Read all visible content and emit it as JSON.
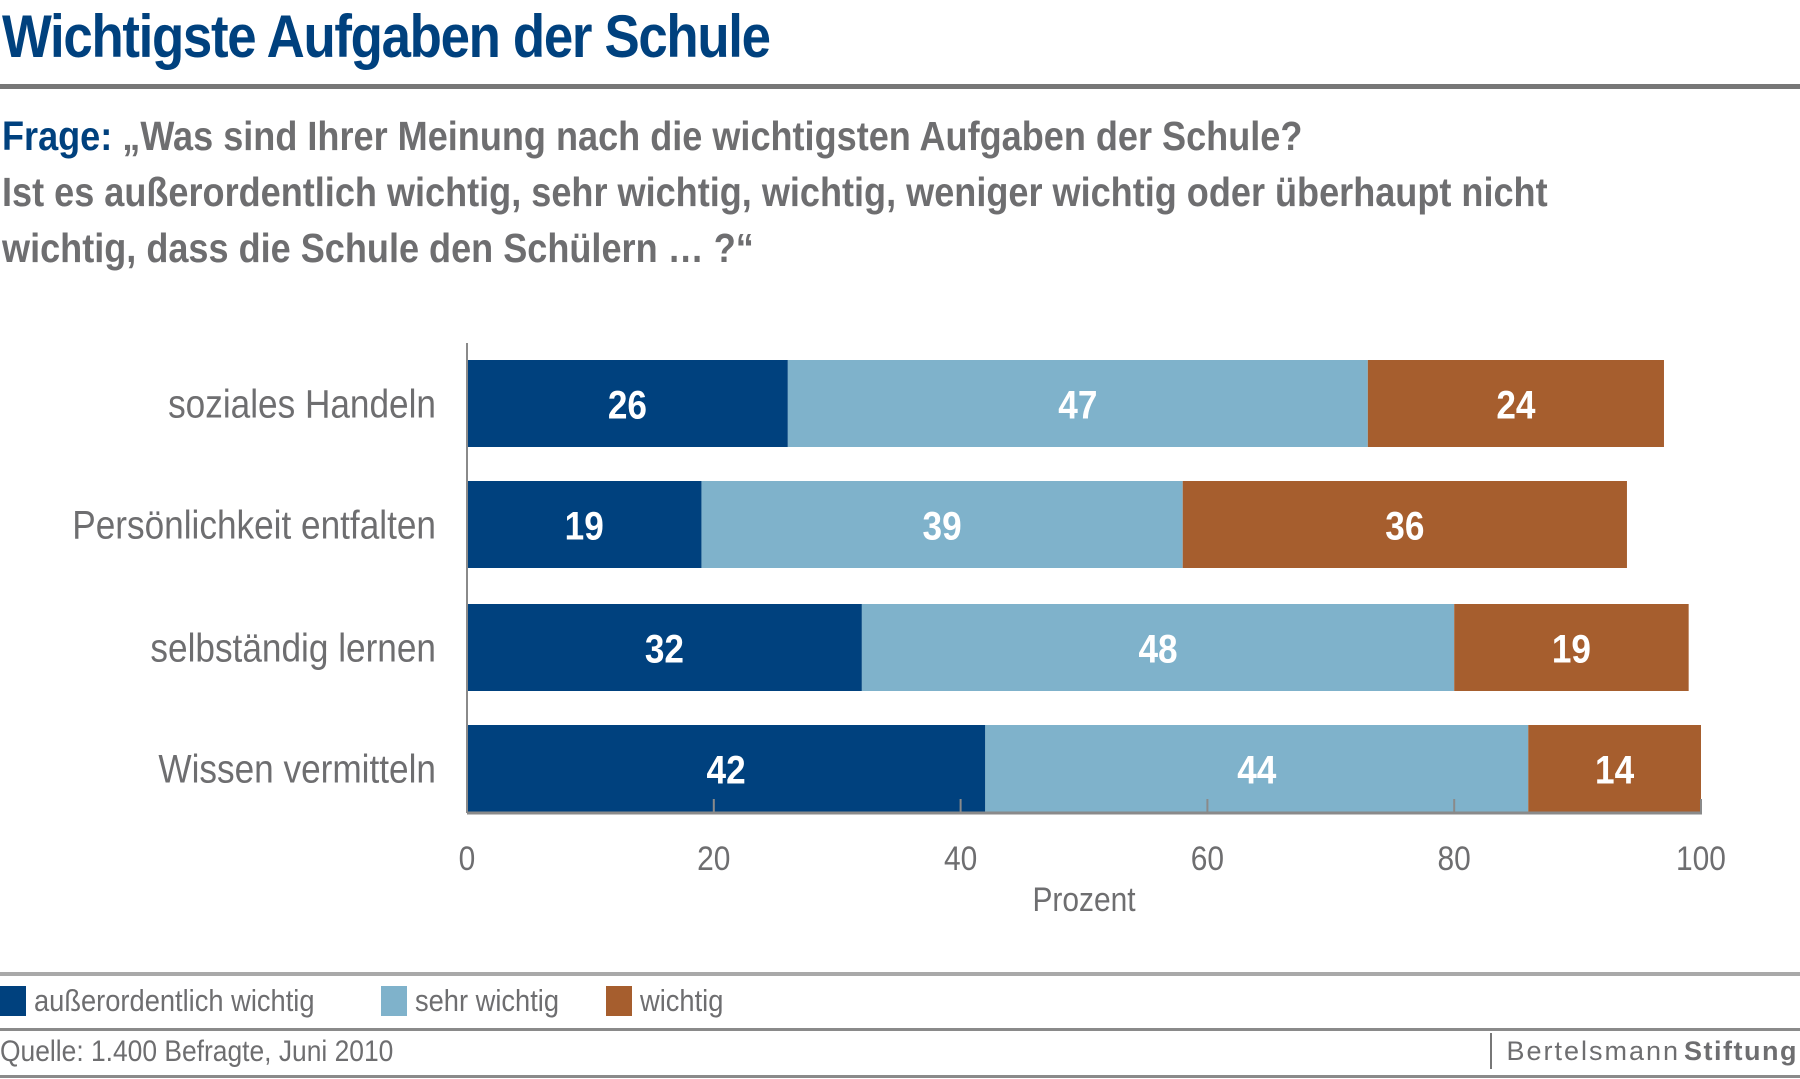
{
  "header": {
    "title": "Wichtigste Aufgaben der Schule",
    "question_label": "Frage:",
    "question_line1": " „Was sind Ihrer Meinung nach die wichtigsten Aufgaben der Schule?",
    "question_line2": "Ist es außerordentlich wichtig, sehr wichtig, wichtig, weniger wichtig oder überhaupt nicht",
    "question_line3": "wichtig, dass die Schule den Schülern … ?“"
  },
  "chart_data": {
    "type": "bar",
    "orientation": "horizontal",
    "stacked": true,
    "title": "Wichtigste Aufgaben der Schule",
    "xlabel": "Prozent",
    "ylabel": "",
    "xlim": [
      0,
      100
    ],
    "xticks": [
      0,
      20,
      40,
      60,
      80,
      100
    ],
    "grid": false,
    "legend_position": "bottom-left",
    "categories": [
      "soziales Handeln",
      "Persönlichkeit entfalten",
      "selbständig lernen",
      "Wissen vermitteln"
    ],
    "series": [
      {
        "name": "außerordentlich wichtig",
        "color": "#00417e",
        "values": [
          26,
          19,
          32,
          42
        ]
      },
      {
        "name": "sehr wichtig",
        "color": "#7fb2cb",
        "values": [
          47,
          39,
          48,
          44
        ]
      },
      {
        "name": "wichtig",
        "color": "#a65e2e",
        "values": [
          24,
          36,
          19,
          14
        ]
      }
    ]
  },
  "legend": {
    "items": [
      {
        "label": "außerordentlich wichtig",
        "color": "#00417e"
      },
      {
        "label": "sehr wichtig",
        "color": "#7fb2cb"
      },
      {
        "label": "wichtig",
        "color": "#a65e2e"
      }
    ]
  },
  "footer": {
    "source": "Quelle: 1.400 Befragte, Juni 2010",
    "brand_part1": "Bertelsmann",
    "brand_part2": "Stiftung"
  }
}
